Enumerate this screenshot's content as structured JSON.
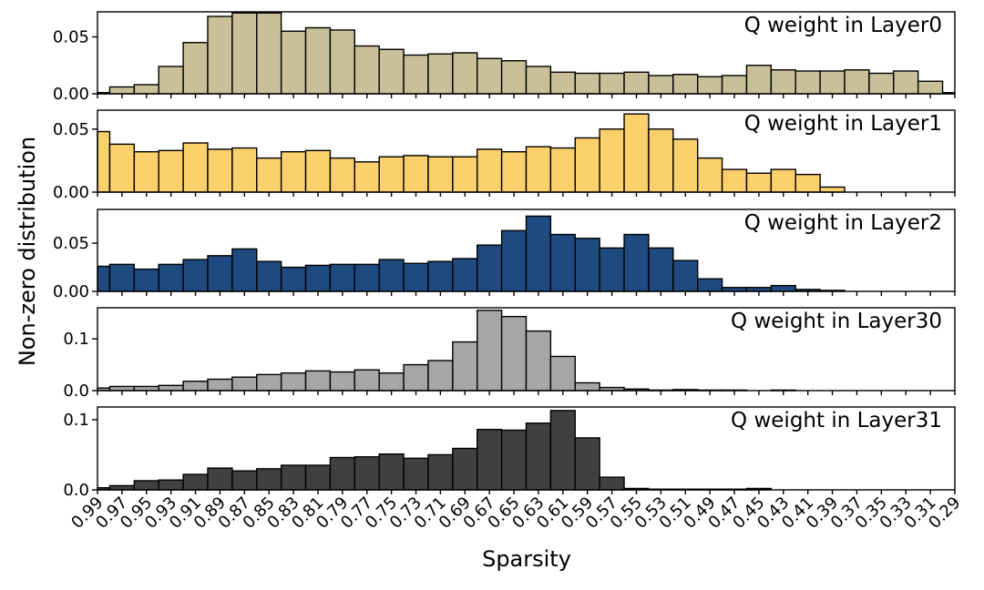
{
  "chart_data": {
    "type": "bar",
    "title": "",
    "xlabel": "Sparsity",
    "ylabel": "Non-zero distribution",
    "categories": [
      "0.99",
      "0.97",
      "0.95",
      "0.93",
      "0.91",
      "0.89",
      "0.87",
      "0.85",
      "0.83",
      "0.81",
      "0.79",
      "0.77",
      "0.75",
      "0.73",
      "0.71",
      "0.69",
      "0.67",
      "0.65",
      "0.63",
      "0.61",
      "0.59",
      "0.57",
      "0.55",
      "0.53",
      "0.51",
      "0.49",
      "0.47",
      "0.45",
      "0.43",
      "0.41",
      "0.39",
      "0.37",
      "0.35",
      "0.33",
      "0.31",
      "0.29"
    ],
    "panels": [
      {
        "name": "Q weight in Layer0",
        "color": "#c9bf99",
        "ylim": [
          0,
          0.072
        ],
        "yticks": [
          0.0,
          0.05
        ],
        "ytick_labels": [
          "0.00",
          "0.05"
        ],
        "values": [
          0.001,
          0.006,
          0.008,
          0.024,
          0.045,
          0.068,
          0.071,
          0.071,
          0.055,
          0.058,
          0.056,
          0.042,
          0.039,
          0.034,
          0.035,
          0.036,
          0.031,
          0.029,
          0.024,
          0.019,
          0.018,
          0.018,
          0.019,
          0.016,
          0.017,
          0.015,
          0.016,
          0.025,
          0.021,
          0.02,
          0.02,
          0.021,
          0.018,
          0.02,
          0.011,
          0.001
        ]
      },
      {
        "name": "Q weight in Layer1",
        "color": "#fcd06c",
        "ylim": [
          0,
          0.065
        ],
        "yticks": [
          0.0,
          0.05
        ],
        "ytick_labels": [
          "0.00",
          "0.05"
        ],
        "values": [
          0.048,
          0.038,
          0.032,
          0.033,
          0.039,
          0.034,
          0.035,
          0.027,
          0.032,
          0.033,
          0.027,
          0.024,
          0.028,
          0.029,
          0.028,
          0.028,
          0.034,
          0.032,
          0.036,
          0.035,
          0.043,
          0.05,
          0.062,
          0.05,
          0.042,
          0.027,
          0.018,
          0.015,
          0.018,
          0.014,
          0.004,
          0.0,
          0.0,
          0.0,
          0.0,
          0.0
        ]
      },
      {
        "name": "Q weight in Layer2",
        "color": "#1e4a80",
        "ylim": [
          0,
          0.085
        ],
        "yticks": [
          0.0,
          0.05
        ],
        "ytick_labels": [
          "0.00",
          "0.05"
        ],
        "values": [
          0.026,
          0.028,
          0.023,
          0.028,
          0.033,
          0.037,
          0.044,
          0.031,
          0.025,
          0.027,
          0.028,
          0.028,
          0.033,
          0.029,
          0.031,
          0.034,
          0.048,
          0.063,
          0.078,
          0.059,
          0.055,
          0.045,
          0.059,
          0.045,
          0.032,
          0.013,
          0.004,
          0.004,
          0.006,
          0.002,
          0.001,
          0.0,
          0.0,
          0.0,
          0.0,
          0.0
        ]
      },
      {
        "name": "Q weight in Layer30",
        "color": "#a6a6a6",
        "ylim": [
          0,
          0.16
        ],
        "yticks": [
          0.0,
          0.1
        ],
        "ytick_labels": [
          "0.0",
          "0.1"
        ],
        "values": [
          0.005,
          0.008,
          0.008,
          0.01,
          0.018,
          0.022,
          0.026,
          0.031,
          0.034,
          0.038,
          0.036,
          0.04,
          0.034,
          0.05,
          0.058,
          0.094,
          0.155,
          0.143,
          0.115,
          0.066,
          0.015,
          0.006,
          0.003,
          0.001,
          0.002,
          0.001,
          0.001,
          0.0,
          0.001,
          0.0,
          0.0,
          0.0,
          0.0,
          0.0,
          0.0,
          0.0
        ]
      },
      {
        "name": "Q weight in Layer31",
        "color": "#404040",
        "ylim": [
          0,
          0.118
        ],
        "yticks": [
          0.0,
          0.1
        ],
        "ytick_labels": [
          "0.0",
          "0.1"
        ],
        "values": [
          0.003,
          0.006,
          0.013,
          0.014,
          0.022,
          0.031,
          0.027,
          0.03,
          0.035,
          0.035,
          0.046,
          0.047,
          0.051,
          0.045,
          0.05,
          0.059,
          0.086,
          0.085,
          0.095,
          0.113,
          0.074,
          0.018,
          0.002,
          0.001,
          0.001,
          0.001,
          0.001,
          0.002,
          0.0,
          0.0,
          0.0,
          0.0,
          0.0,
          0.0,
          0.0,
          0.0
        ]
      }
    ]
  }
}
